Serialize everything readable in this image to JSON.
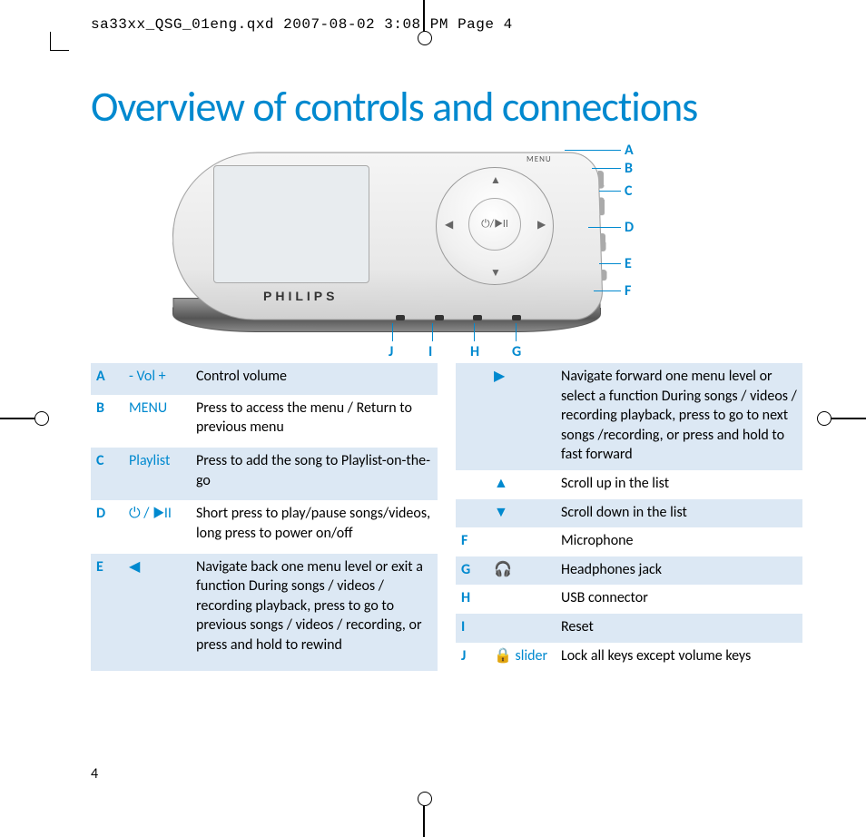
{
  "header": "sa33xx_QSG_01eng.qxd  2007-08-02  3:08 PM  Page 4",
  "title": "Overview of controls and connections",
  "device": {
    "brand": "PHILIPS",
    "menu_label": "MENU",
    "center_label": "⏻/▶II"
  },
  "callouts_right": [
    "A",
    "B",
    "C",
    "D",
    "E",
    "F"
  ],
  "callouts_bottom": [
    "J",
    "I",
    "H",
    "G"
  ],
  "left_table": [
    {
      "letter": "A",
      "symbol": "- Vol +",
      "desc": "Control volume",
      "shade": true
    },
    {
      "letter": "B",
      "symbol": "MENU",
      "desc": "Press to access the menu / Return to previous menu",
      "shade": false
    },
    {
      "letter": "C",
      "symbol": "Playlist",
      "desc": "Press to add the song to Playlist-on-the-go",
      "shade": true
    },
    {
      "letter": "D",
      "symbol": "⏻ / ▶II",
      "desc": "Short press to play/pause songs/videos, long press to power on/off",
      "shade": false
    },
    {
      "letter": "E",
      "symbol": "◀",
      "desc": "Navigate back one menu level or exit a function\nDuring songs / videos / recording playback, press to go to previous songs / videos / recording, or press and hold to rewind",
      "shade": true
    }
  ],
  "right_table": [
    {
      "letter": "",
      "symbol": "▶",
      "desc": "Navigate forward one menu level or select a function\nDuring songs / videos / recording playback, press to go to next songs /recording, or press and hold to fast forward",
      "shade": true
    },
    {
      "letter": "",
      "symbol": "▲",
      "desc": "Scroll up in the list",
      "shade": false
    },
    {
      "letter": "",
      "symbol": "▼",
      "desc": "Scroll down in the list",
      "shade": true
    },
    {
      "letter": "F",
      "symbol": "",
      "desc": "Microphone",
      "shade": false
    },
    {
      "letter": "G",
      "symbol": "🎧",
      "desc": "Headphones jack",
      "shade": true
    },
    {
      "letter": "H",
      "symbol": "",
      "desc": "USB connector",
      "shade": false
    },
    {
      "letter": "I",
      "symbol": "",
      "desc": "Reset",
      "shade": true
    },
    {
      "letter": "J",
      "symbol": "🔒 slider",
      "desc": "Lock all keys except volume keys",
      "shade": false
    }
  ],
  "page_number": "4",
  "colors": {
    "brand_blue": "#0089cf",
    "shade": "#dce8f4"
  }
}
